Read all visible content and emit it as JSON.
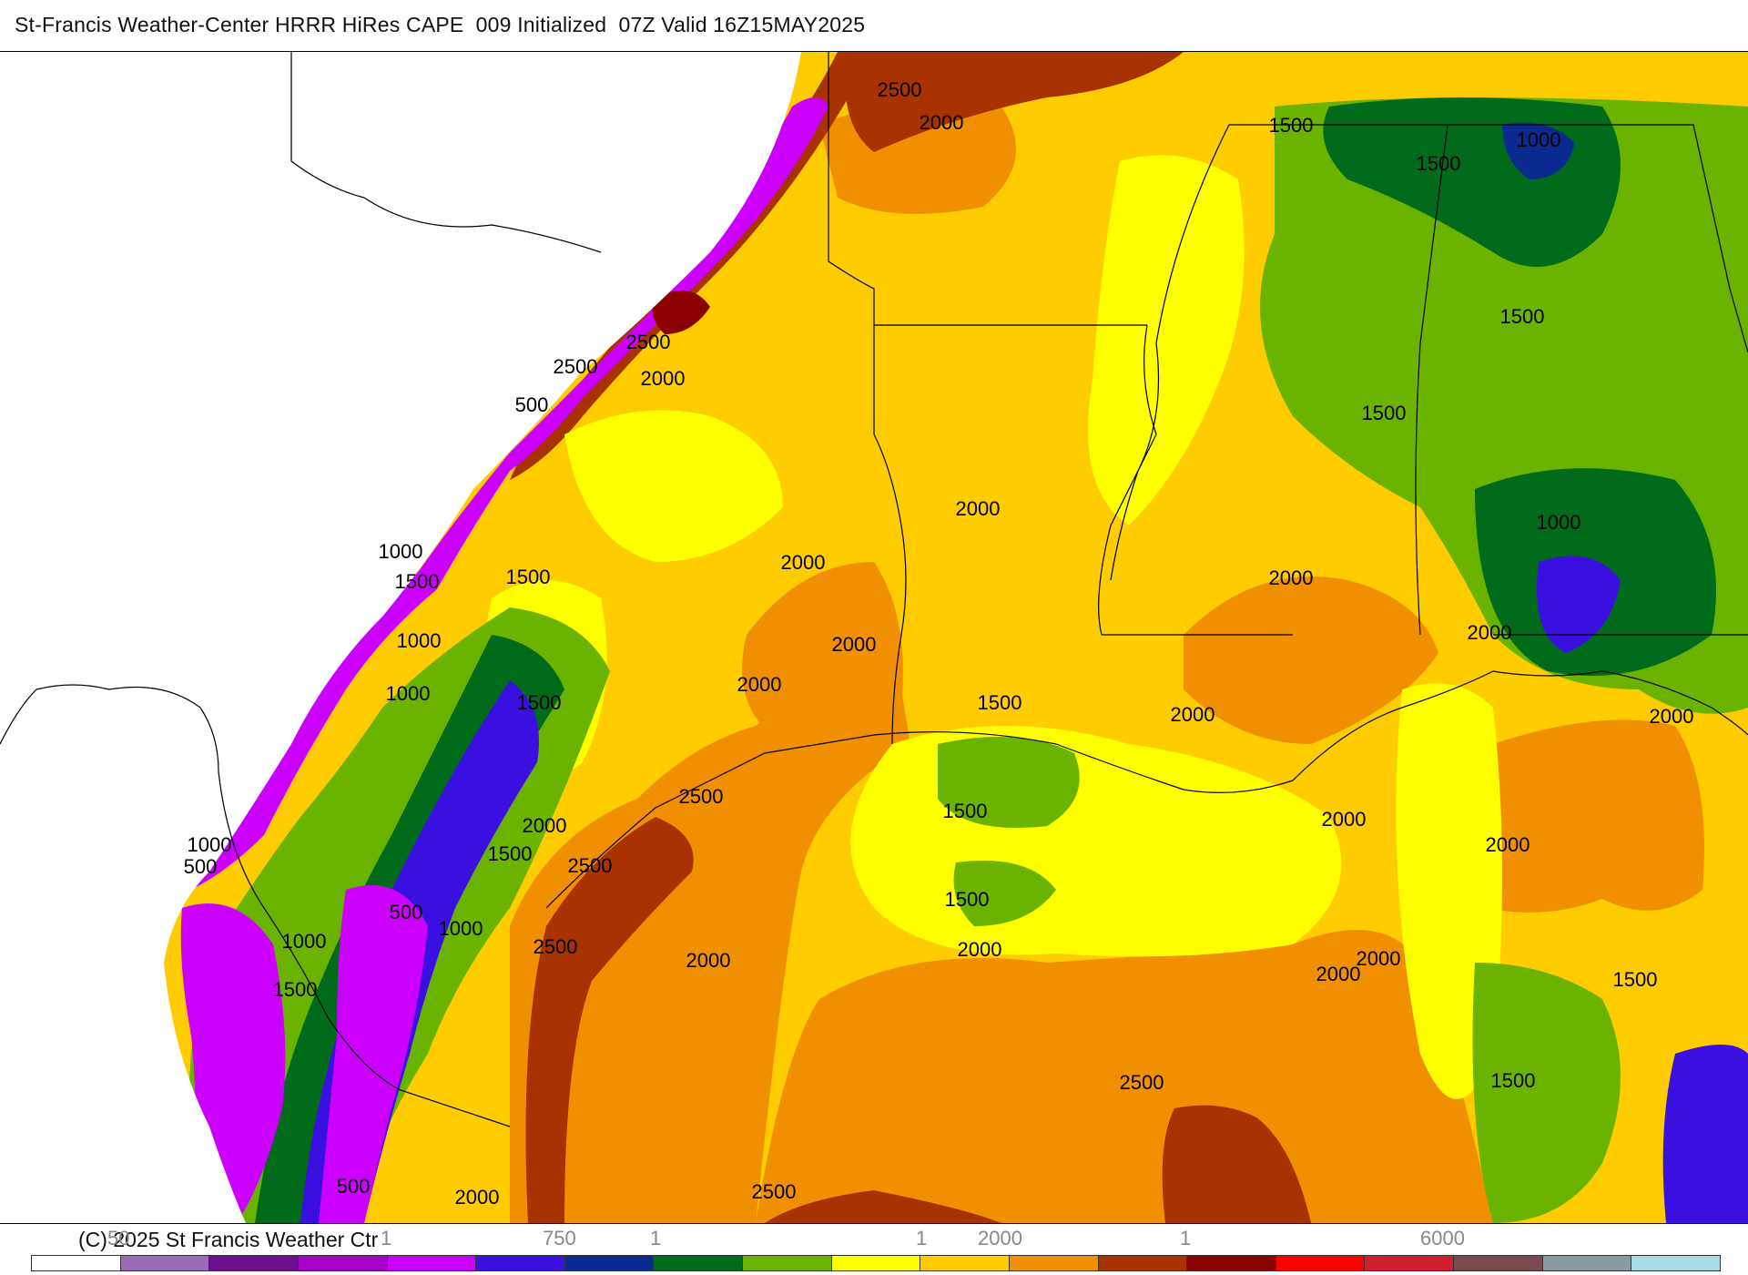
{
  "header": {
    "title": "St-Francis Weather-Center HRRR HiRes CAPE  009 Initialized  07Z Valid 16Z15MAY2025"
  },
  "map": {
    "contour_labels": [
      {
        "text": "2500"
      },
      {
        "text": "2000"
      },
      {
        "text": "1500"
      },
      {
        "text": "1000"
      },
      {
        "text": "1500"
      },
      {
        "text": "1500"
      },
      {
        "text": "2500"
      },
      {
        "text": "2000"
      },
      {
        "text": "2500"
      },
      {
        "text": "500"
      },
      {
        "text": "1000"
      },
      {
        "text": "1500"
      },
      {
        "text": "1500"
      },
      {
        "text": "1000"
      },
      {
        "text": "1500"
      },
      {
        "text": "1000"
      },
      {
        "text": "2000"
      },
      {
        "text": "2000"
      },
      {
        "text": "2000"
      },
      {
        "text": "2000"
      },
      {
        "text": "2000"
      },
      {
        "text": "1000"
      },
      {
        "text": "1500"
      },
      {
        "text": "1500"
      },
      {
        "text": "2000"
      },
      {
        "text": "1500"
      },
      {
        "text": "2000"
      },
      {
        "text": "2000"
      },
      {
        "text": "2000"
      },
      {
        "text": "1500"
      },
      {
        "text": "1000"
      },
      {
        "text": "500"
      },
      {
        "text": "2500"
      },
      {
        "text": "2000"
      },
      {
        "text": "1500"
      },
      {
        "text": "2500"
      },
      {
        "text": "500"
      },
      {
        "text": "1000"
      },
      {
        "text": "1000"
      },
      {
        "text": "2500"
      },
      {
        "text": "1500"
      },
      {
        "text": "2000"
      },
      {
        "text": "2000"
      },
      {
        "text": "2000"
      },
      {
        "text": "2000"
      },
      {
        "text": "2000"
      },
      {
        "text": "1500"
      },
      {
        "text": "2500"
      },
      {
        "text": "1500"
      },
      {
        "text": "500"
      },
      {
        "text": "2000"
      },
      {
        "text": "2500"
      }
    ]
  },
  "footer": {
    "copyright": "(C) 2025 St Francis Weather Ctr",
    "tick_labels": [
      "50",
      "1",
      "750",
      "1",
      "1",
      "2000",
      "1",
      "6000"
    ]
  },
  "colorbar": {
    "colors": [
      "#ffffff",
      "#9b6bb8",
      "#6a0f8e",
      "#a400c8",
      "#cc00ff",
      "#3a10e0",
      "#0a2a8f",
      "#006b1a",
      "#6ab400",
      "#ffff00",
      "#ffcc00",
      "#f09000",
      "#a83200",
      "#8b0000",
      "#ff0000",
      "#d02030",
      "#7a4a50",
      "#8a9ba0",
      "#a8dce6"
    ]
  },
  "shading_colors": {
    "purple": "#cc00ff",
    "violet": "#a400c8",
    "blue": "#3a10e0",
    "navy": "#0a2a8f",
    "darkgreen": "#006b1a",
    "green": "#6ab400",
    "yellow": "#ffff00",
    "gold": "#ffcc00",
    "orange": "#f09000",
    "rust": "#a83200",
    "maroon": "#8b0000"
  }
}
